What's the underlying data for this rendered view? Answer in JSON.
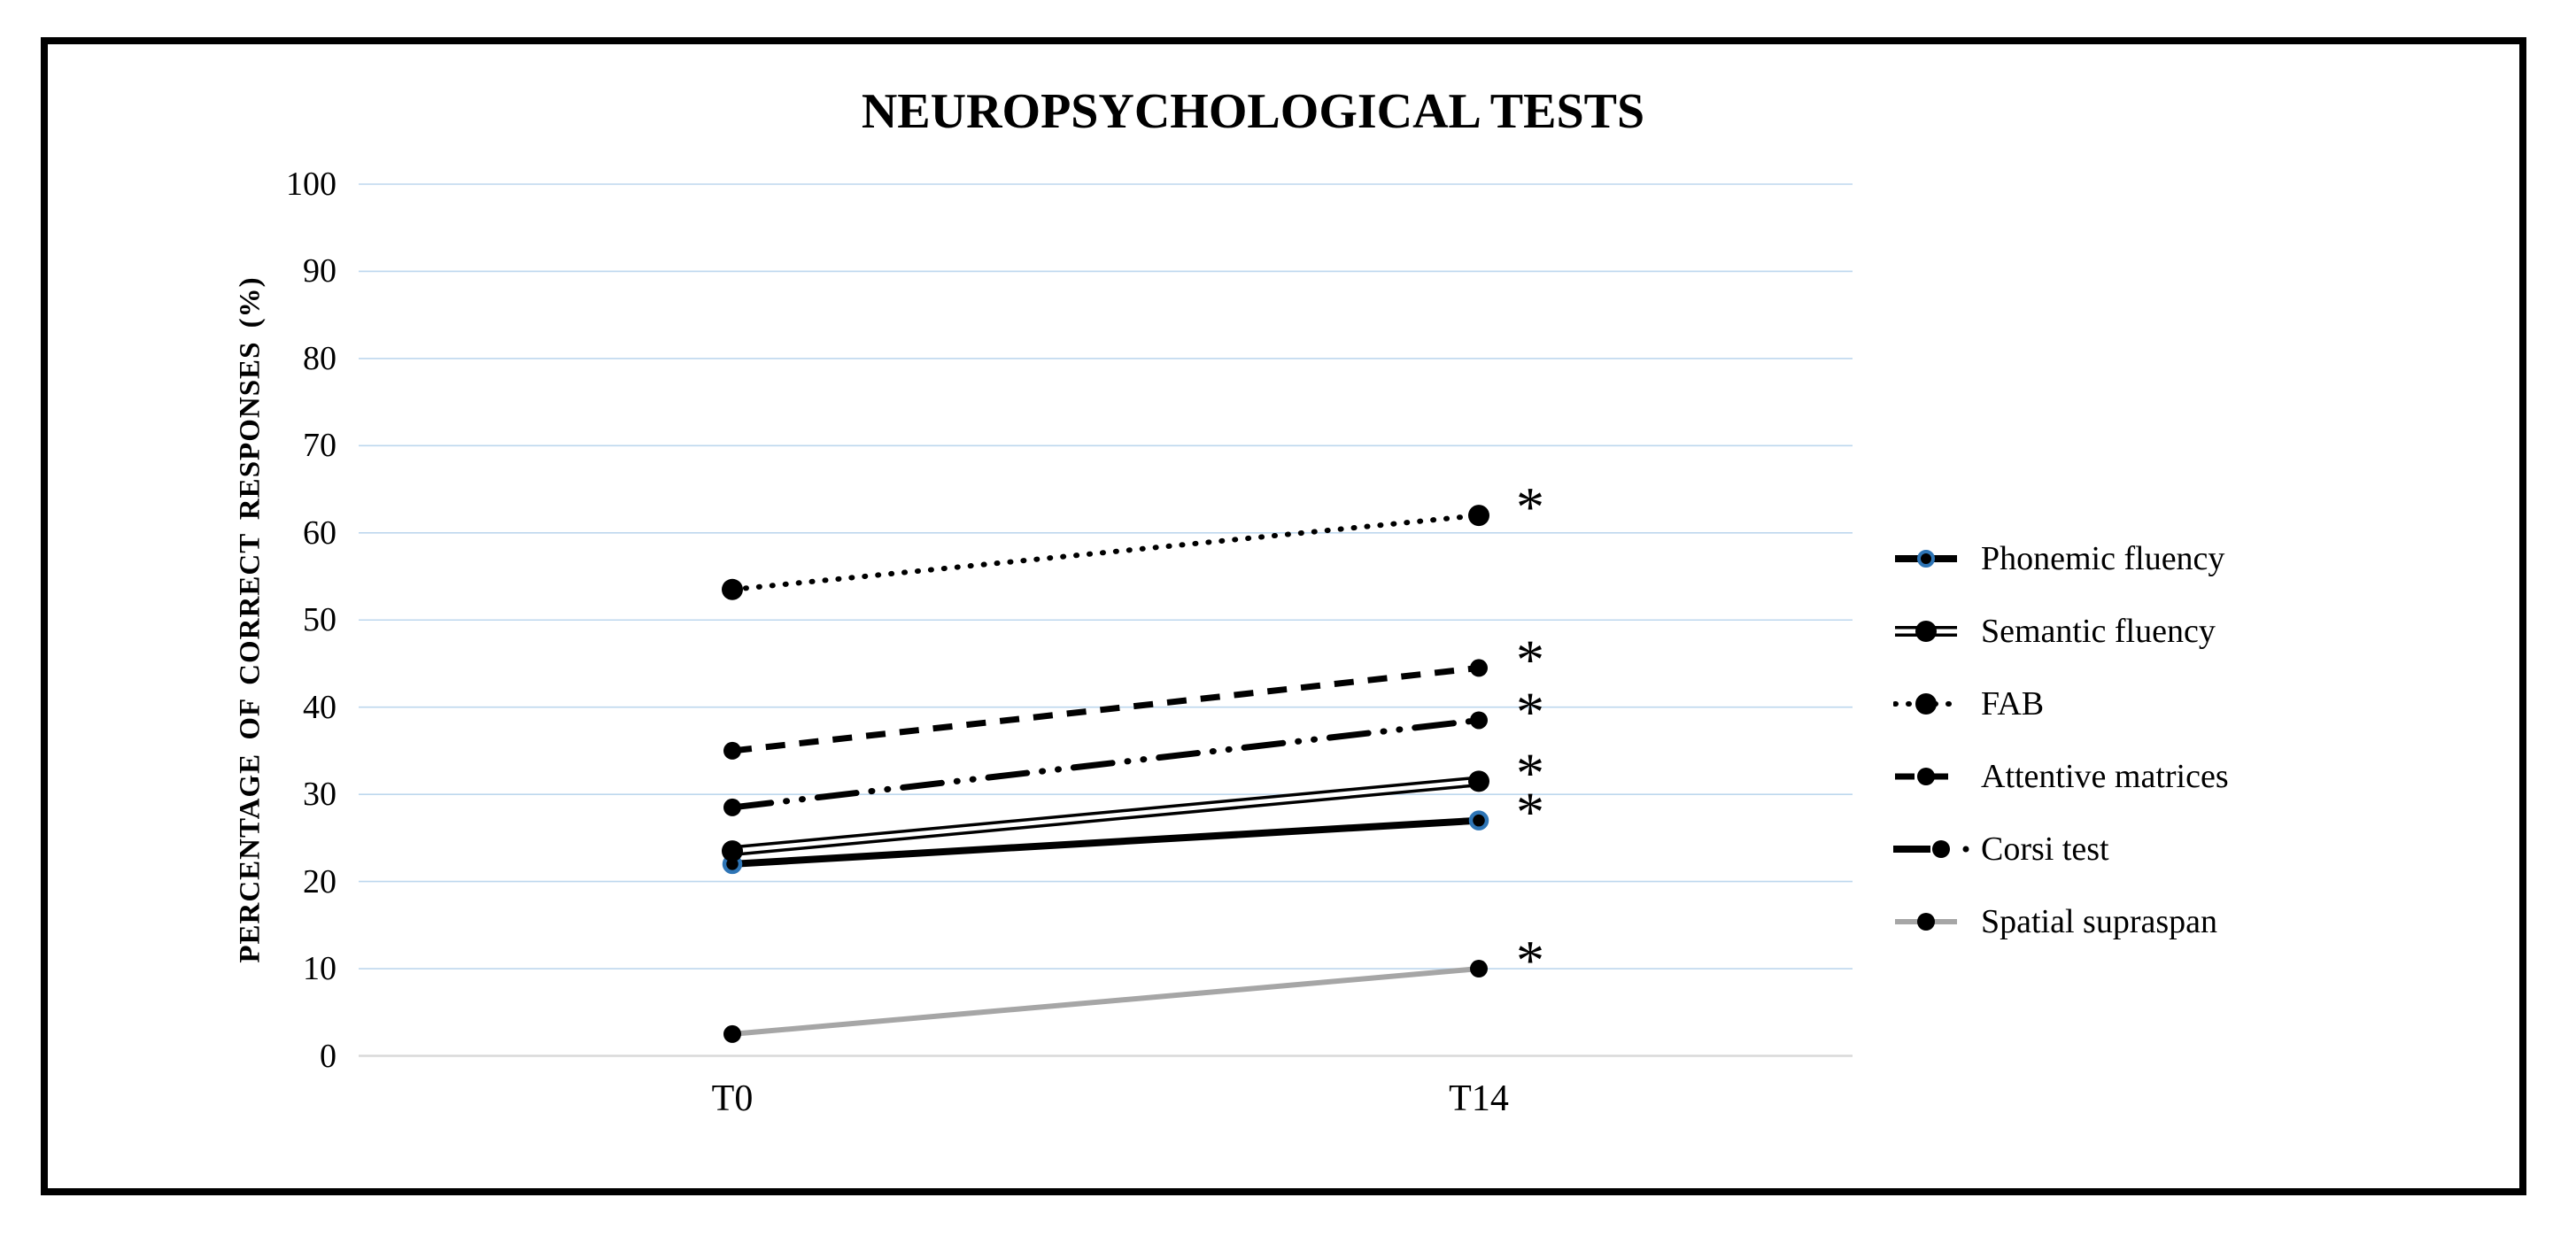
{
  "figure": {
    "title": "NEUROPSYCHOLOGICAL TESTS"
  },
  "colors": {
    "background": "#ffffff",
    "border": "#000000",
    "text": "#000000",
    "gridline": "#bdd7ee",
    "zero_line": "#d9d9d9",
    "series_black": "#000000",
    "series_gray": "#a6a6a6",
    "phonemic_marker_ring": "#2e75b6"
  },
  "chart_data": {
    "type": "line",
    "title": "NEUROPSYCHOLOGICAL TESTS",
    "xlabel": "",
    "ylabel": "PERCENTAGE OF CORRECT RESPONSES (%)",
    "categories": [
      "T0",
      "T14"
    ],
    "yticks": [
      0,
      10,
      20,
      30,
      40,
      50,
      60,
      70,
      80,
      90,
      100
    ],
    "ylim": [
      0,
      100
    ],
    "grid": "horizontal",
    "legend_position": "right",
    "significance_symbol": "*",
    "series": [
      {
        "name": "Phonemic fluency",
        "values": [
          22,
          27
        ],
        "style": "solid-thick",
        "color": "#000000",
        "marker": "blue-ring",
        "significant_at_T14": true
      },
      {
        "name": "Semantic fluency",
        "values": [
          23.5,
          31.5
        ],
        "style": "double",
        "color": "#000000",
        "marker": "black-dot",
        "significant_at_T14": true
      },
      {
        "name": "FAB",
        "values": [
          53.5,
          62
        ],
        "style": "dotted",
        "color": "#000000",
        "marker": "black-dot",
        "significant_at_T14": true
      },
      {
        "name": "Attentive matrices",
        "values": [
          35,
          44.5
        ],
        "style": "dashed",
        "color": "#000000",
        "marker": "black-dot",
        "significant_at_T14": true
      },
      {
        "name": "Corsi test",
        "values": [
          28.5,
          38.5
        ],
        "style": "dash-dot-dot",
        "color": "#000000",
        "marker": "black-dot",
        "significant_at_T14": true
      },
      {
        "name": "Spatial supraspan",
        "values": [
          2.5,
          10
        ],
        "style": "solid",
        "color": "#a6a6a6",
        "marker": "black-dot",
        "significant_at_T14": true
      }
    ]
  }
}
